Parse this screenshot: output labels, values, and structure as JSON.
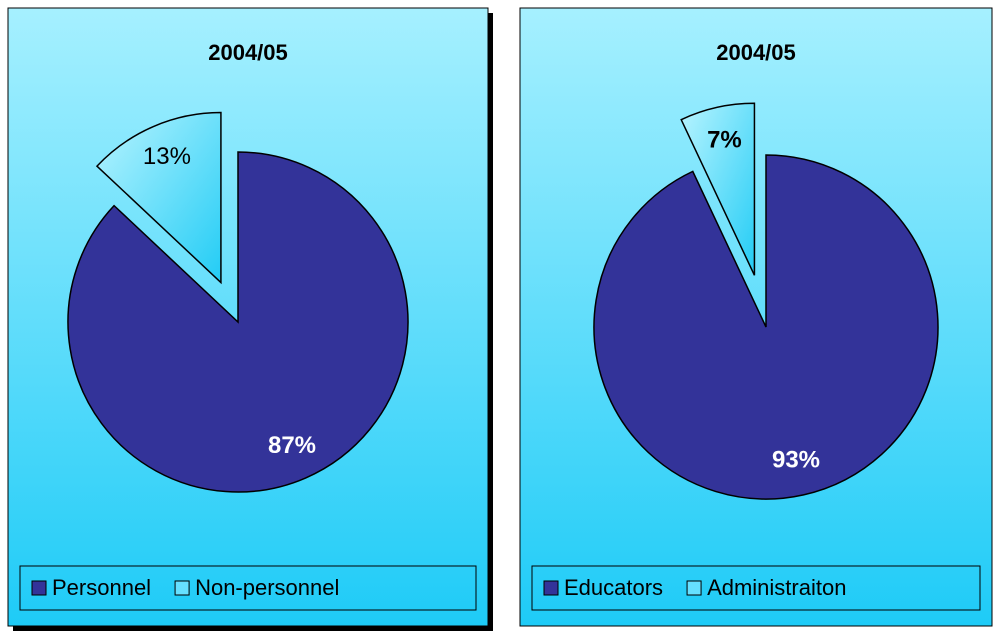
{
  "chart_data": [
    {
      "type": "pie",
      "title": "2004/05",
      "categories": [
        "Personnel",
        "Non-personnel"
      ],
      "values": [
        87,
        13
      ],
      "value_labels": [
        "87%",
        "13%"
      ],
      "colors": [
        "#333399",
        "#66e0ff"
      ],
      "legend": "bottom"
    },
    {
      "type": "pie",
      "title": "2004/05",
      "categories": [
        "Educators",
        "Administraiton"
      ],
      "values": [
        93,
        7
      ],
      "value_labels": [
        "93%",
        "7%"
      ],
      "colors": [
        "#333399",
        "#66e0ff"
      ],
      "legend": "bottom"
    }
  ]
}
